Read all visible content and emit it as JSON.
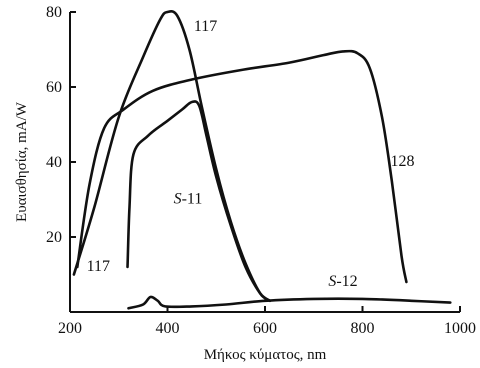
{
  "chart_data": {
    "type": "line",
    "xlabel": "Μήκος κύματος, nm",
    "ylabel": "Ευαισθησία, mA/W",
    "xlim": [
      200,
      1000
    ],
    "ylim": [
      0,
      80
    ],
    "xticks": [
      200,
      400,
      600,
      800,
      1000
    ],
    "yticks": [
      20,
      40,
      60,
      80
    ],
    "x_tick_labels": [
      "200",
      "400",
      "600",
      "800",
      "1000"
    ],
    "y_tick_labels": [
      "20",
      "40",
      "60",
      "80"
    ],
    "grid": false,
    "series": [
      {
        "name": "117",
        "points": [
          [
            208,
            10
          ],
          [
            250,
            28
          ],
          [
            300,
            52
          ],
          [
            350,
            68
          ],
          [
            385,
            78
          ],
          [
            400,
            80
          ],
          [
            420,
            79
          ],
          [
            445,
            70
          ],
          [
            470,
            55
          ],
          [
            500,
            38
          ],
          [
            530,
            24
          ],
          [
            560,
            13
          ],
          [
            590,
            5
          ],
          [
            610,
            3
          ]
        ]
      },
      {
        "name": "128",
        "points": [
          [
            215,
            12
          ],
          [
            240,
            34
          ],
          [
            270,
            49
          ],
          [
            310,
            54
          ],
          [
            370,
            59
          ],
          [
            450,
            62
          ],
          [
            550,
            64.5
          ],
          [
            650,
            66.5
          ],
          [
            720,
            68.5
          ],
          [
            760,
            69.5
          ],
          [
            790,
            69
          ],
          [
            815,
            65
          ],
          [
            840,
            52
          ],
          [
            860,
            35
          ],
          [
            880,
            15
          ],
          [
            890,
            8
          ]
        ]
      },
      {
        "name": "S-11",
        "points": [
          [
            318,
            12
          ],
          [
            322,
            28
          ],
          [
            330,
            42
          ],
          [
            360,
            47
          ],
          [
            400,
            51
          ],
          [
            430,
            54
          ],
          [
            450,
            56
          ],
          [
            465,
            55
          ],
          [
            480,
            47
          ],
          [
            500,
            36
          ],
          [
            530,
            23
          ],
          [
            560,
            12
          ],
          [
            590,
            5
          ],
          [
            610,
            3
          ]
        ]
      },
      {
        "name": "S-12",
        "points": [
          [
            320,
            1
          ],
          [
            350,
            2
          ],
          [
            365,
            4
          ],
          [
            380,
            3
          ],
          [
            395,
            1.5
          ],
          [
            450,
            1.5
          ],
          [
            520,
            2
          ],
          [
            600,
            3
          ],
          [
            700,
            3.5
          ],
          [
            800,
            3.5
          ],
          [
            900,
            3
          ],
          [
            980,
            2.5
          ]
        ]
      }
    ],
    "annotations": [
      {
        "text": "117",
        "x": 478,
        "y": 75
      },
      {
        "text": "128",
        "x": 882,
        "y": 39
      },
      {
        "text": "S-11",
        "x": 442,
        "y": 29
      },
      {
        "text": "117",
        "x": 258,
        "y": 11
      },
      {
        "text": "S-12",
        "x": 760,
        "y": 7
      }
    ]
  }
}
